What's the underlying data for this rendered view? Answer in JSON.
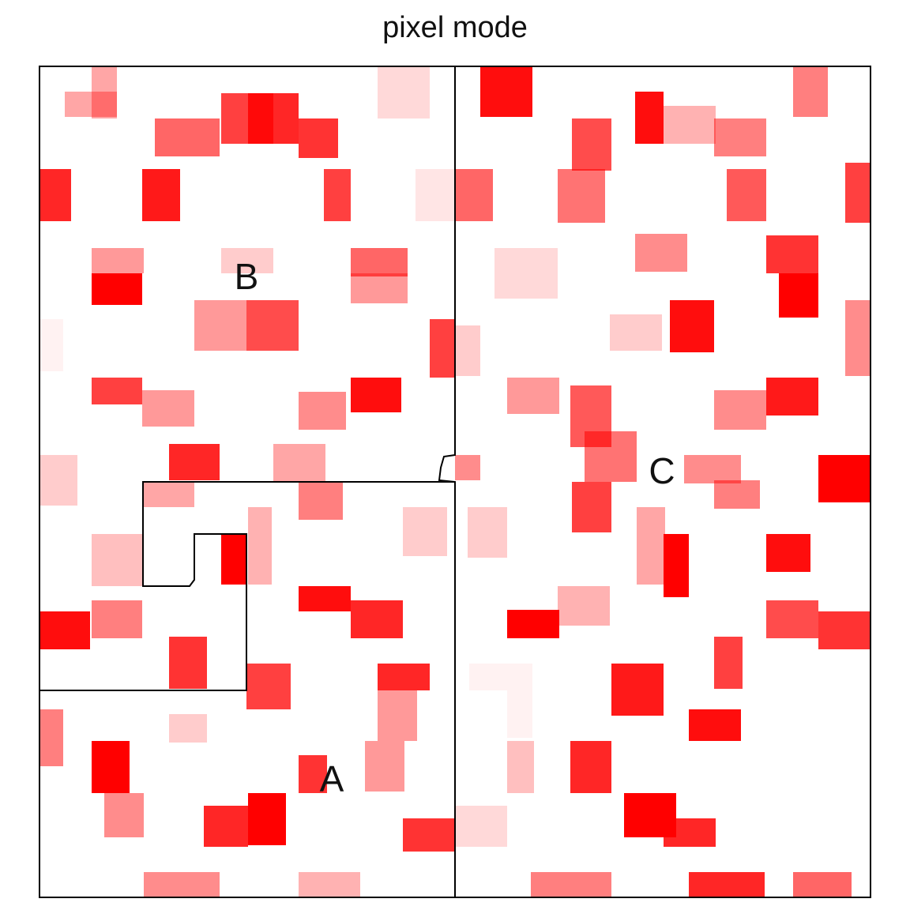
{
  "chart_data": {
    "type": "heatmap",
    "title": "pixel mode",
    "xlabel": "",
    "ylabel": "",
    "grid": false,
    "legend": false,
    "color_scale": {
      "low": "#ffffff",
      "high": "#ff0000"
    },
    "region_labels": [
      "A",
      "B",
      "C"
    ],
    "border_color": "#000000",
    "note": ""
  }
}
